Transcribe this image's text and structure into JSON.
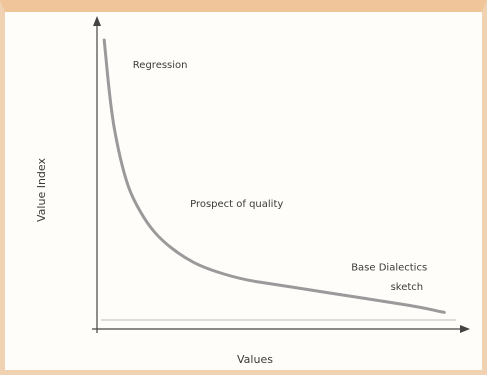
{
  "chart_data": {
    "type": "line",
    "title": "",
    "xlabel": "Values",
    "ylabel": "Value Index",
    "xlim": [
      0,
      100
    ],
    "ylim": [
      0,
      100
    ],
    "grid": false,
    "legend": "none",
    "series": [
      {
        "x": [
          2,
          4,
          6,
          8,
          10,
          14,
          18,
          24,
          30,
          40,
          50,
          60,
          70,
          80,
          90,
          97
        ],
        "y": [
          100,
          74,
          60,
          50,
          43,
          34,
          28,
          22,
          18,
          14,
          12,
          10,
          8,
          6,
          4,
          2
        ],
        "color": "#9a9a9a"
      }
    ],
    "annotations": [
      {
        "id": "top",
        "text": "Regression",
        "x": 10,
        "y": 90
      },
      {
        "id": "middle",
        "text": "Prospect of quality",
        "x": 26,
        "y": 40
      },
      {
        "id": "right-1",
        "text": "Base Dialectics",
        "x": 71,
        "y": 17
      },
      {
        "id": "right-2",
        "text": "sketch",
        "x": 82,
        "y": 10
      }
    ]
  }
}
